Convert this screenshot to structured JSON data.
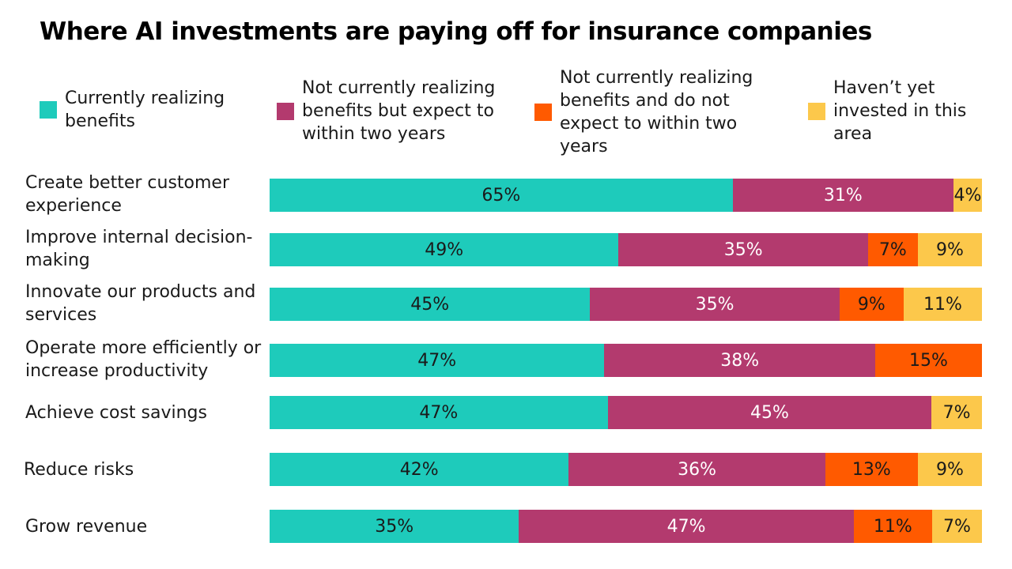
{
  "chart_data": {
    "type": "bar",
    "orientation": "horizontal",
    "stacked": true,
    "title": "Where AI investments are paying off for insurance companies",
    "legend_placement": "top",
    "categories": [
      "Create better customer experience",
      "Improve internal decision-making",
      "Innovate our products and services",
      "Operate more efficiently or increase productivity",
      "Achieve cost savings",
      "Reduce risks",
      "Grow revenue"
    ],
    "series": [
      {
        "name": "Currently realizing benefits",
        "color": "#1ECBBB",
        "label_color": "#1a1a1a",
        "values": [
          65,
          49,
          45,
          47,
          47,
          42,
          35
        ]
      },
      {
        "name": "Not currently realizing benefits but expect to within two years",
        "color": "#B33A6E",
        "label_color": "#ffffff",
        "values": [
          31,
          35,
          35,
          38,
          45,
          36,
          47
        ]
      },
      {
        "name": "Not currently realizing benefits and do not expect to within two years",
        "color": "#FF5A00",
        "label_color": "#1a1a1a",
        "values": [
          0,
          7,
          9,
          15,
          0,
          13,
          11
        ]
      },
      {
        "name": "Haven’t yet invested in this area",
        "color": "#FCC84B",
        "label_color": "#1a1a1a",
        "values": [
          4,
          9,
          11,
          0,
          7,
          9,
          7
        ]
      }
    ],
    "value_suffix": "%"
  }
}
